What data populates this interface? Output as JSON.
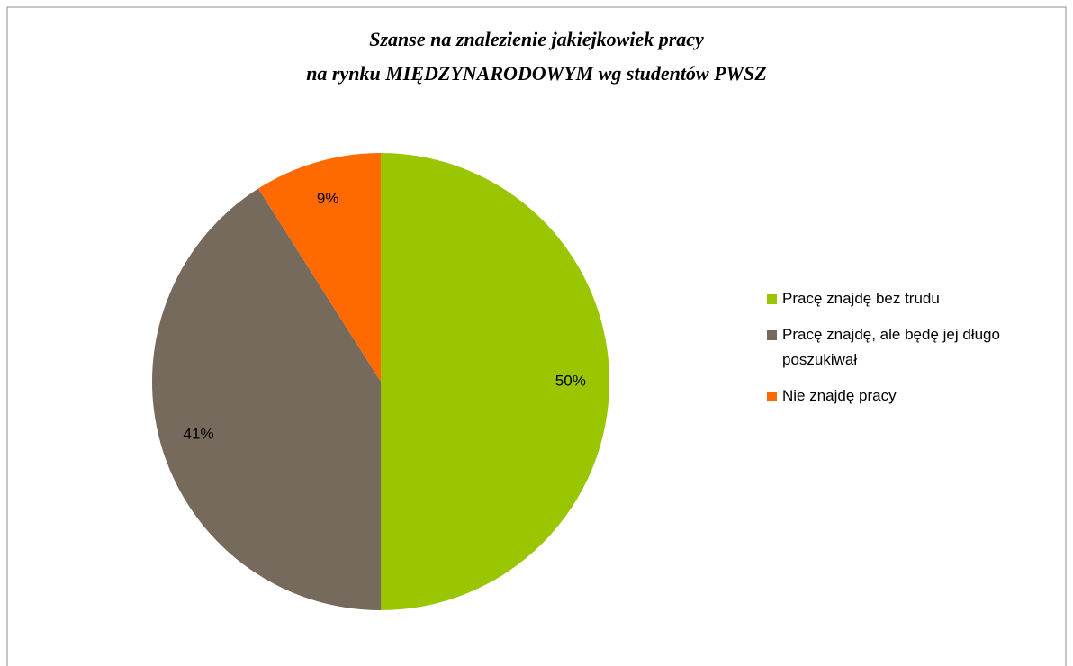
{
  "chart_data": {
    "type": "pie",
    "title": [
      "Szanse na znalezienie jakiejkowiek pracy",
      "na rynku MIĘDZYNARODOWYM  wg studentów PWSZ"
    ],
    "categories": [
      "Pracę znajdę bez trudu",
      "Pracę znajdę, ale będę jej długo poszukiwał",
      "Nie znajdę pracy"
    ],
    "values": [
      50,
      41,
      9
    ],
    "value_labels": [
      "50%",
      "41%",
      "9%"
    ],
    "colors": [
      "#99c600",
      "#756a5b",
      "#ff6a00"
    ],
    "legend": "right"
  }
}
